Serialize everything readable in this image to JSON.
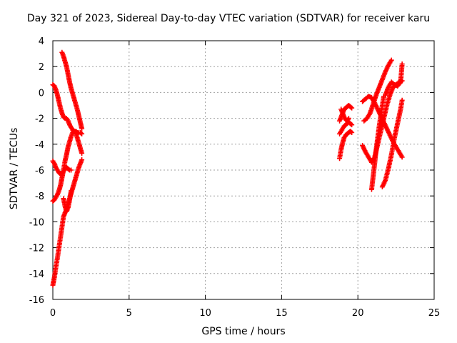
{
  "chart_data": {
    "type": "scatter",
    "title": "Day 321 of 2023, Sidereal Day-to-day VTEC variation (SDTVAR) for receiver karu",
    "xlabel": "GPS time / hours",
    "ylabel": "SDTVAR / TECUs",
    "xlim": [
      0,
      25
    ],
    "ylim": [
      -16,
      4
    ],
    "xticks": [
      "0",
      "5",
      "10",
      "15",
      "20",
      "25"
    ],
    "yticks": [
      "-16",
      "-14",
      "-12",
      "-10",
      "-8",
      "-6",
      "-4",
      "-2",
      "0",
      "2",
      "4"
    ],
    "grid": true,
    "marker": "+",
    "color": "#ff0000",
    "series": [
      {
        "x": [
          0.0,
          0.1,
          0.2,
          0.3,
          0.4,
          0.5,
          0.6,
          0.7,
          0.8,
          0.9,
          1.0,
          1.1,
          1.2,
          1.3,
          1.4,
          1.5,
          1.6,
          1.7,
          1.8,
          1.9
        ],
        "y": [
          0.6,
          0.5,
          0.2,
          -0.2,
          -0.7,
          -1.2,
          -1.6,
          -1.9,
          -2.0,
          -2.0,
          -2.2,
          -2.5,
          -2.7,
          -2.9,
          -3.0,
          -3.0,
          -3.1,
          -3.1,
          -3.1,
          -3.2
        ]
      },
      {
        "x": [
          0.6,
          0.7,
          0.8,
          0.9,
          1.0,
          1.1,
          1.2,
          1.3,
          1.4,
          1.5,
          1.6,
          1.7,
          1.8,
          1.9
        ],
        "y": [
          3.1,
          2.8,
          2.4,
          2.0,
          1.4,
          0.8,
          0.3,
          -0.1,
          -0.5,
          -0.9,
          -1.3,
          -1.8,
          -2.3,
          -2.8
        ]
      },
      {
        "x": [
          0.0,
          0.1,
          0.2,
          0.3,
          0.4,
          0.5,
          0.6,
          0.7,
          0.8,
          0.9,
          1.0,
          1.1,
          1.2,
          1.3,
          1.4,
          1.5,
          1.6,
          1.7,
          1.8,
          1.9
        ],
        "y": [
          -8.4,
          -8.3,
          -8.1,
          -7.9,
          -7.6,
          -7.2,
          -6.6,
          -6.0,
          -5.3,
          -4.8,
          -4.2,
          -3.8,
          -3.4,
          -3.1,
          -3.0,
          -3.1,
          -3.5,
          -3.9,
          -4.3,
          -4.7
        ]
      },
      {
        "x": [
          0.0,
          0.1,
          0.2,
          0.3,
          0.4,
          0.5,
          0.6,
          0.7,
          0.8,
          0.9,
          1.0,
          1.1,
          1.2
        ],
        "y": [
          -5.3,
          -5.5,
          -5.8,
          -6.0,
          -6.2,
          -6.3,
          -6.3,
          -6.1,
          -5.9,
          -5.8,
          -5.9,
          -6.0,
          -6.0
        ]
      },
      {
        "x": [
          0.0,
          0.1,
          0.2,
          0.3,
          0.4,
          0.5,
          0.6,
          0.7,
          0.8,
          0.9,
          1.0,
          1.1,
          1.2,
          1.3,
          1.4,
          1.5,
          1.6,
          1.7,
          1.8,
          1.9
        ],
        "y": [
          -14.9,
          -14.3,
          -13.5,
          -12.8,
          -12.0,
          -11.2,
          -10.4,
          -9.6,
          -9.3,
          -9.0,
          -8.6,
          -8.2,
          -7.8,
          -7.4,
          -7.0,
          -6.6,
          -6.2,
          -5.8,
          -5.5,
          -5.2
        ]
      },
      {
        "x": [
          0.7,
          0.8,
          0.9,
          1.0,
          1.1,
          1.2
        ],
        "y": [
          -8.2,
          -8.8,
          -9.2,
          -8.9,
          -8.3,
          -7.6
        ]
      },
      {
        "x": [
          18.8,
          18.9,
          19.0,
          19.1,
          19.2,
          19.3,
          19.4,
          19.5,
          19.6
        ],
        "y": [
          -2.2,
          -1.9,
          -1.6,
          -1.3,
          -1.2,
          -1.1,
          -1.0,
          -1.1,
          -1.2
        ]
      },
      {
        "x": [
          18.8,
          18.9,
          19.0,
          19.1,
          19.2,
          19.3,
          19.4,
          19.5,
          19.6
        ],
        "y": [
          -3.2,
          -3.0,
          -2.8,
          -2.6,
          -2.5,
          -2.4,
          -2.3,
          -2.4,
          -2.5
        ]
      },
      {
        "x": [
          18.8,
          18.9,
          19.0,
          19.1,
          19.2,
          19.3,
          19.4,
          19.5,
          19.6
        ],
        "y": [
          -5.1,
          -4.4,
          -3.9,
          -3.5,
          -3.3,
          -3.2,
          -3.1,
          -3.0,
          -3.1
        ]
      },
      {
        "x": [
          18.9,
          19.0,
          19.1,
          19.2,
          19.3,
          19.4
        ],
        "y": [
          -1.3,
          -1.6,
          -1.9,
          -2.1,
          -2.2,
          -2.0
        ]
      },
      {
        "x": [
          20.3,
          20.5,
          20.7,
          20.9,
          21.1,
          21.3,
          21.5,
          21.7,
          21.9,
          22.1,
          22.3,
          22.5,
          22.7,
          22.9
        ],
        "y": [
          -0.7,
          -0.5,
          -0.3,
          -0.4,
          -0.8,
          -1.3,
          -1.8,
          -2.3,
          -2.8,
          -3.3,
          -3.8,
          -4.2,
          -4.6,
          -5.0
        ]
      },
      {
        "x": [
          20.3,
          20.5,
          20.7,
          20.9,
          21.1,
          21.3,
          21.5,
          21.7,
          21.9,
          22.1,
          22.3,
          22.5,
          22.7,
          22.9
        ],
        "y": [
          -4.1,
          -4.6,
          -5.0,
          -5.4,
          -5.0,
          -4.0,
          -3.0,
          -2.0,
          -1.0,
          -0.2,
          0.4,
          0.6,
          0.8,
          0.9
        ]
      },
      {
        "x": [
          20.4,
          20.6,
          20.8,
          21.0,
          21.2,
          21.4,
          21.6,
          21.8,
          22.0,
          22.2
        ],
        "y": [
          -2.2,
          -2.0,
          -1.6,
          -0.9,
          -0.2,
          0.4,
          1.0,
          1.6,
          2.1,
          2.5
        ]
      },
      {
        "x": [
          20.9,
          21.0,
          21.1,
          21.2,
          21.3,
          21.4,
          21.5,
          21.6,
          21.7
        ],
        "y": [
          -7.5,
          -6.5,
          -5.5,
          -4.4,
          -3.5,
          -2.6,
          -1.8,
          -1.0,
          -0.3
        ]
      },
      {
        "x": [
          21.6,
          21.8,
          22.0,
          22.2,
          22.4,
          22.6,
          22.8,
          22.9
        ],
        "y": [
          -7.3,
          -6.8,
          -5.9,
          -4.8,
          -3.5,
          -2.4,
          -1.3,
          -0.6
        ]
      },
      {
        "x": [
          21.8,
          22.0,
          22.2,
          22.4,
          22.6,
          22.8,
          22.9
        ],
        "y": [
          -0.2,
          0.4,
          0.8,
          0.6,
          0.5,
          0.8,
          2.2
        ]
      }
    ]
  }
}
